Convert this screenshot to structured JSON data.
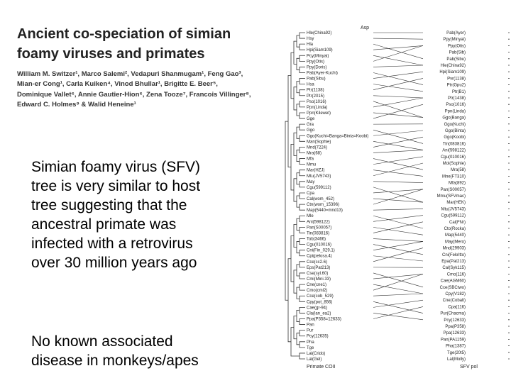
{
  "paper": {
    "title_line1": "Ancient co-speciation of simian",
    "title_line2": "foamy viruses and primates",
    "authors_line1": "William M. Switzer¹, Marco Salemi², Vedapuri Shanmugam¹, Feng Gao³,",
    "authors_line2": "Mian-er Cong¹, Carla Kuiken⁴, Vinod Bhullar¹, Brigitte E. Beer⁵,",
    "authors_line3": "Dominique Vallet⁶, Annie Gautier-Hion⁶, Zena Tooze⁷, Francois Villinger⁸,",
    "authors_line4": "Edward C. Holmes⁹ & Walid Heneine¹"
  },
  "slide": {
    "summary_line1": "Simian foamy virus (SFV)",
    "summary_line2": "tree is very similar to host",
    "summary_line3": "tree suggesting that the",
    "summary_line4": "ancestral primate was",
    "summary_line5": "infected with a retrovirus",
    "summary_line6": "over 30 million years ago",
    "note_line1": "No known associated",
    "note_line2": "disease in monkeys/apes"
  },
  "tree": {
    "left_label": "Primate COII",
    "right_label": "SFV pol",
    "top_center_label": "Asp",
    "left_taxa": [
      "Hle(China92)",
      "Hsy",
      "Hla",
      "Hpi(Siam109)",
      "Pcy(Minyai)",
      "Ppy(Otis)",
      "Ppy(Doris)",
      "Pab(Ayer-Kuchi)",
      "Pab(Sibu)",
      "Hsa",
      "Ptr(1138)",
      "Ptr(2015)",
      "Pso(1016)",
      "Ppn(Linda)",
      "Ppn(Kilewet)",
      "Gge",
      "Gra",
      "Ggo",
      "Ggo(Kuchi=Banga=Binta=Koobi)",
      "Man(Sophie)",
      "Mnd(7224)",
      "Mra(68)",
      "Mfa",
      "Mmu",
      "Mar(HZJ)",
      "Mtu(JV5743)",
      "May",
      "Cgu(599112)",
      "Cpa",
      "Cal(wom_452)",
      "Ctn(wom_15396)",
      "Map(5440=mnd13)",
      "Mle",
      "Ani(598122)",
      "Pan(S00057)",
      "Tin(083816)",
      "Tob(3466)",
      "Cgu(010016)",
      "Cni(Fin_029.1)",
      "Cpi(pelosa.4)",
      "Cce(cc2.6)",
      "Eps(Pat213)",
      "Cse(syl.60)",
      "Cmi(Mini.33)",
      "Cne(cne1)",
      "Cmo(cml2)",
      "Cce(cob_529)",
      "Cpy(pot_856)",
      "Cae(gr-94)",
      "Cla(lan_ea2)",
      "Ppa(P358=12633)",
      "Pan",
      "Pur",
      "Pcy(12635)",
      "Pha",
      "Tge",
      "Lal(Crido)",
      "Lal(Gel)"
    ],
    "right_taxa": [
      "Pab(Ayer)",
      "Ppy(Minyai)",
      "Ppy(Otis)",
      "Pab(Sib)",
      "Pab(Sibu)",
      "Hle(China92)",
      "Hpi(Siam109)",
      "Pvr(1138)",
      "Ptr(Gpu2)",
      "Ptr(B1)",
      "Ptr(1438)",
      "Pso(1016)",
      "Ppn(Linda)",
      "Ggo(Banga)",
      "Ggo(Kuchi)",
      "Ggo(Binta)",
      "Ggo(Koobi)",
      "Tin(083816)",
      "Ani(598122)",
      "Cgu(010016)",
      "Mol(Sophie)",
      "Mra(58)",
      "Mne(FT310)",
      "Mfa(892)",
      "Pan(S00057)",
      "Mmu(SFVmac)",
      "Mar(HEK)",
      "Mtu(JV5743)",
      "Cgu(599112)",
      "Cal(FNr)",
      "Cto(Rocka)",
      "Map(5440)",
      "May(Mero)",
      "Mnd(29903)",
      "Cni(Fekritto)",
      "Epa(Pat213)",
      "Cal(Syk115)",
      "Cmo(116)",
      "Cae(AGM60)",
      "Cce(SBCtwo)",
      "Cpy(V182)",
      "Cne(Cobalt)",
      "Cpa(116)",
      "Pur(Chacma)",
      "Pcy(12633)",
      "Ppa(P358)",
      "Ppa(12633)",
      "Pan(PA1159)",
      "Pha(1387)",
      "Tge(20t5)",
      "Lal(Molly)"
    ]
  }
}
